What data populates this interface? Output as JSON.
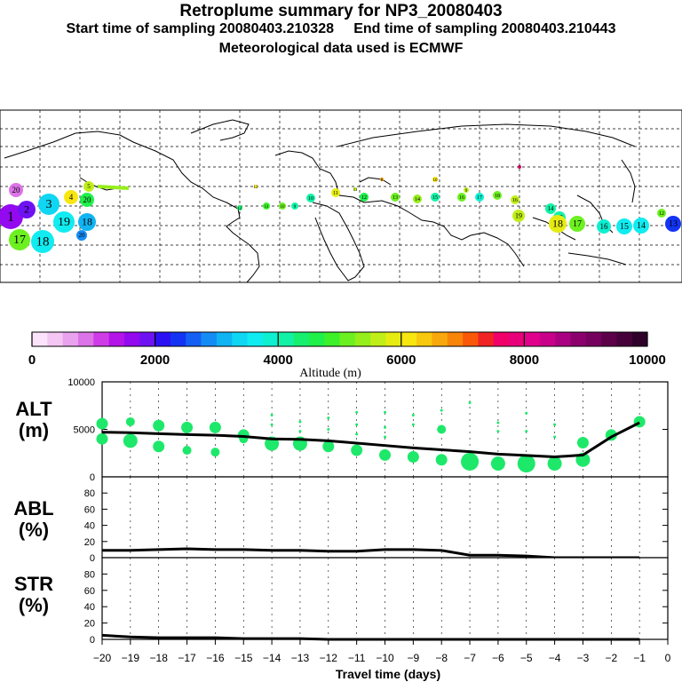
{
  "header": {
    "title": "Retroplume summary for NP3_20080403",
    "sampling": "Start time of sampling 20080403.210328     End time of sampling 20080403.210443",
    "met": "Meteorological data used is ECMWF"
  },
  "colorbar": {
    "tick_labels": [
      "0",
      "2000",
      "4000",
      "6000",
      "8000",
      "10000"
    ],
    "label": "Altitude (m)",
    "colors": [
      "#fbe4fb",
      "#f3c6f4",
      "#e9a2ee",
      "#dd73e8",
      "#cf3be6",
      "#b414e8",
      "#9309f0",
      "#6e12f3",
      "#2c10f4",
      "#1434f4",
      "#1560f4",
      "#148cf5",
      "#10b4f3",
      "#0fd6f3",
      "#10ecf0",
      "#0ef0d0",
      "#12f2a6",
      "#17f06e",
      "#1ff04a",
      "#3cf02a",
      "#6cf020",
      "#96ee1c",
      "#c0ee18",
      "#e6ec12",
      "#f8e610",
      "#f8c80e",
      "#f8a80c",
      "#f8840a",
      "#f85808",
      "#f02424",
      "#f00068",
      "#e8007a",
      "#e0008c",
      "#c8008a",
      "#aa0082",
      "#8c006e",
      "#76005e",
      "#5c004a",
      "#46003a",
      "#2e002a"
    ]
  },
  "map_labels": {
    "numbers": [
      "1",
      "2",
      "3",
      "4",
      "5",
      "6",
      "7",
      "8",
      "9",
      "10",
      "11",
      "12",
      "13",
      "14",
      "15",
      "16",
      "17",
      "18",
      "19",
      "20"
    ]
  },
  "chart_data": [
    {
      "type": "scatter+line",
      "panel": "ALT",
      "ylabel": "ALT\n(m)",
      "ylabel_line1": "ALT",
      "ylabel_line2": "(m)",
      "ylim": [
        0,
        10000
      ],
      "yticks": [
        "0",
        "5000",
        "10000"
      ],
      "x": [
        -20,
        -19,
        -18,
        -17,
        -16,
        -15,
        -14,
        -13,
        -12,
        -11,
        -10,
        -9,
        -8,
        -7,
        -6,
        -5,
        -4,
        -3,
        -2,
        -1
      ],
      "median_line": [
        4700,
        4650,
        4550,
        4450,
        4380,
        4250,
        4000,
        3950,
        3800,
        3550,
        3300,
        3050,
        2850,
        2650,
        2400,
        2250,
        2100,
        2300,
        4200,
        5700
      ],
      "clusters": [
        {
          "x": -20,
          "y": 5600,
          "s": "m"
        },
        {
          "x": -20,
          "y": 4000,
          "s": "m"
        },
        {
          "x": -19,
          "y": 5800,
          "s": "s"
        },
        {
          "x": -19,
          "y": 3800,
          "s": "l"
        },
        {
          "x": -18,
          "y": 5400,
          "s": "m"
        },
        {
          "x": -18,
          "y": 3200,
          "s": "m"
        },
        {
          "x": -17,
          "y": 5200,
          "s": "m"
        },
        {
          "x": -17,
          "y": 2800,
          "s": "s"
        },
        {
          "x": -16,
          "y": 5200,
          "s": "m"
        },
        {
          "x": -16,
          "y": 2600,
          "s": "s"
        },
        {
          "x": -15,
          "y": 4400,
          "s": "m"
        },
        {
          "x": -15,
          "y": 4000,
          "s": "s"
        },
        {
          "x": -14,
          "y": 6500,
          "s": "t"
        },
        {
          "x": -14,
          "y": 5500,
          "s": "t"
        },
        {
          "x": -14,
          "y": 3500,
          "s": "l"
        },
        {
          "x": -13,
          "y": 5800,
          "s": "t"
        },
        {
          "x": -13,
          "y": 4800,
          "s": "t"
        },
        {
          "x": -13,
          "y": 3500,
          "s": "l"
        },
        {
          "x": -12,
          "y": 6200,
          "s": "t"
        },
        {
          "x": -12,
          "y": 5000,
          "s": "t"
        },
        {
          "x": -12,
          "y": 3200,
          "s": "m"
        },
        {
          "x": -11,
          "y": 6800,
          "s": "t"
        },
        {
          "x": -11,
          "y": 5500,
          "s": "t"
        },
        {
          "x": -11,
          "y": 4500,
          "s": "t"
        },
        {
          "x": -11,
          "y": 2800,
          "s": "m"
        },
        {
          "x": -10,
          "y": 6800,
          "s": "t"
        },
        {
          "x": -10,
          "y": 5200,
          "s": "t"
        },
        {
          "x": -10,
          "y": 4200,
          "s": "t"
        },
        {
          "x": -10,
          "y": 2300,
          "s": "m"
        },
        {
          "x": -9,
          "y": 6500,
          "s": "t"
        },
        {
          "x": -9,
          "y": 5500,
          "s": "t"
        },
        {
          "x": -9,
          "y": 2100,
          "s": "m"
        },
        {
          "x": -8,
          "y": 7000,
          "s": "t"
        },
        {
          "x": -8,
          "y": 5000,
          "s": "s"
        },
        {
          "x": -8,
          "y": 1800,
          "s": "m"
        },
        {
          "x": -7,
          "y": 7800,
          "s": "t"
        },
        {
          "x": -7,
          "y": 1600,
          "s": "xl"
        },
        {
          "x": -6,
          "y": 5700,
          "s": "t"
        },
        {
          "x": -6,
          "y": 4800,
          "s": "t"
        },
        {
          "x": -6,
          "y": 1400,
          "s": "l"
        },
        {
          "x": -5,
          "y": 6700,
          "s": "t"
        },
        {
          "x": -5,
          "y": 4800,
          "s": "t"
        },
        {
          "x": -5,
          "y": 1400,
          "s": "xl"
        },
        {
          "x": -4,
          "y": 5500,
          "s": "t"
        },
        {
          "x": -4,
          "y": 4200,
          "s": "t"
        },
        {
          "x": -4,
          "y": 1400,
          "s": "l"
        },
        {
          "x": -3,
          "y": 3600,
          "s": "m"
        },
        {
          "x": -3,
          "y": 1800,
          "s": "l"
        },
        {
          "x": -2,
          "y": 4400,
          "s": "m"
        },
        {
          "x": -1,
          "y": 5800,
          "s": "m"
        }
      ]
    },
    {
      "type": "line",
      "panel": "ABL",
      "ylabel_line1": "ABL",
      "ylabel_line2": "(%)",
      "ylim": [
        0,
        100
      ],
      "yticks": [
        "0",
        "20",
        "40",
        "60",
        "80"
      ],
      "x": [
        -20,
        -19,
        -18,
        -17,
        -16,
        -15,
        -14,
        -13,
        -12,
        -11,
        -10,
        -9,
        -8,
        -7,
        -6,
        -5,
        -4,
        -3,
        -2,
        -1
      ],
      "values": [
        9,
        9,
        10,
        11,
        10,
        10,
        9,
        9,
        8,
        8,
        10,
        10,
        9,
        3,
        3,
        2,
        0,
        0,
        0,
        0
      ]
    },
    {
      "type": "line",
      "panel": "STR",
      "ylabel_line1": "STR",
      "ylabel_line2": "(%)",
      "ylim": [
        0,
        100
      ],
      "yticks": [
        "0",
        "20",
        "40",
        "60",
        "80"
      ],
      "x": [
        -20,
        -19,
        -18,
        -17,
        -16,
        -15,
        -14,
        -13,
        -12,
        -11,
        -10,
        -9,
        -8,
        -7,
        -6,
        -5,
        -4,
        -3,
        -2,
        -1
      ],
      "values": [
        5,
        3,
        2,
        2,
        2,
        1,
        1,
        1,
        0,
        0,
        0,
        0,
        0,
        0,
        0,
        0,
        0,
        0,
        0,
        0
      ]
    }
  ],
  "x_axis": {
    "tick_labels": [
      "−20",
      "−19",
      "−18",
      "−17",
      "−16",
      "−15",
      "−14",
      "−13",
      "−12",
      "−11",
      "−10",
      "−9",
      "−8",
      "−7",
      "−6",
      "−5",
      "−4",
      "−3",
      "−2",
      "−1",
      "0"
    ],
    "title": "Travel time (days)"
  }
}
